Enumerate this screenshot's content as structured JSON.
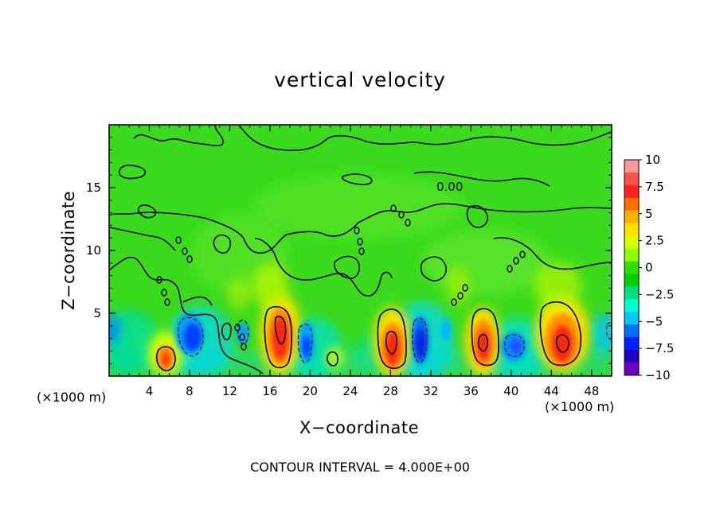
{
  "chart_data": {
    "type": "heatmap",
    "title": "vertical velocity",
    "xlabel": "X−coordinate",
    "ylabel": "Z−coordinate",
    "x_unit_label": "(×1000 m)",
    "x_ticks": [
      4,
      8,
      12,
      16,
      20,
      24,
      28,
      32,
      36,
      40,
      44,
      48
    ],
    "x_tick_labels": [
      "4",
      "8",
      "12",
      "16",
      "20",
      "24",
      "28",
      "32",
      "36",
      "40",
      "44",
      "48"
    ],
    "y_ticks": [
      5,
      10,
      15
    ],
    "y_tick_labels": [
      "5",
      "10",
      "15"
    ],
    "xlim": [
      0,
      50
    ],
    "ylim": [
      0,
      20
    ],
    "contour_label": "0.00",
    "contour_interval_text": "CONTOUR INTERVAL = 4.000E+00",
    "colorbar": {
      "ticks": [
        10,
        7.5,
        5,
        2.5,
        0,
        -2.5,
        -5,
        -7.5,
        -10
      ],
      "tick_labels": [
        "10",
        "7.5",
        "5",
        "2.5",
        "0",
        "−2.5",
        "−5",
        "−7.5",
        "−10"
      ],
      "colors": [
        "#ff9999",
        "#ff5050",
        "#ff2020",
        "#ff7000",
        "#ffb000",
        "#ffe000",
        "#d8ff00",
        "#90ff00",
        "#30e000",
        "#00d000",
        "#00e080",
        "#00ffd0",
        "#00c8ff",
        "#0070ff",
        "#0020ff",
        "#2000c0",
        "#7000c0"
      ]
    },
    "features": [
      {
        "kind": "updraft",
        "x": 5.8,
        "z": 1.5,
        "value": 7
      },
      {
        "kind": "downdraft",
        "x": 8.5,
        "z": 3.2,
        "value": -7
      },
      {
        "kind": "updraft",
        "x": 17.2,
        "z": 3.2,
        "value": 9
      },
      {
        "kind": "downdraft",
        "x": 19.5,
        "z": 2.2,
        "value": -6
      },
      {
        "kind": "downdraft",
        "x": 13.5,
        "z": 2.8,
        "value": -4
      },
      {
        "kind": "updraft",
        "x": 28.0,
        "z": 2.5,
        "value": 8
      },
      {
        "kind": "downdraft",
        "x": 31.0,
        "z": 2.6,
        "value": -9
      },
      {
        "kind": "updraft",
        "x": 37.5,
        "z": 2.6,
        "value": 9
      },
      {
        "kind": "downdraft",
        "x": 40.5,
        "z": 2.1,
        "value": -5
      },
      {
        "kind": "updraft",
        "x": 45.0,
        "z": 2.7,
        "value": 9
      }
    ]
  }
}
